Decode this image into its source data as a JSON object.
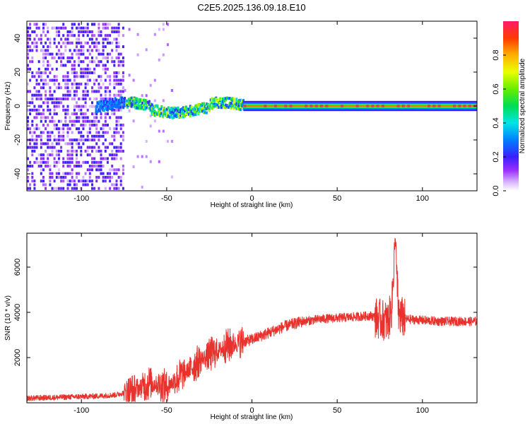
{
  "title": "C2E5.2025.136.09.18.E10",
  "chart_data": [
    {
      "type": "heatmap",
      "xlabel": "Height of straight line (km)",
      "ylabel": "Frequency (Hz)",
      "xlim": [
        -132,
        132
      ],
      "ylim": [
        -50,
        50
      ],
      "xticks": [
        -100,
        -50,
        0,
        50,
        100
      ],
      "yticks": [
        -40,
        -20,
        0,
        20,
        40
      ],
      "colorbar": {
        "label": "Normalized spectral amplitude",
        "range": [
          0,
          1
        ],
        "ticks": [
          0.0,
          0.2,
          0.4,
          0.6,
          0.8
        ],
        "tick_labels": [
          "0.0",
          "0.2",
          "0.4",
          "0.6",
          "0.8"
        ],
        "colormap": "purple-blue-cyan-green-yellow-red"
      },
      "regions": [
        {
          "x_range": [
            -132,
            -75
          ],
          "description_level": "broadband noise",
          "amplitude": 0.15
        },
        {
          "x_range": [
            -75,
            -5
          ],
          "center_freq_hz": 0,
          "width_hz": 6,
          "amplitude": 0.35
        },
        {
          "x_range": [
            -5,
            132
          ],
          "center_freq_hz": 0,
          "width_hz": 3,
          "amplitude": 0.95
        }
      ]
    },
    {
      "type": "line",
      "xlabel": "Height of straight line (km)",
      "ylabel": "SNR (10 * v/v)",
      "xlim": [
        -132,
        132
      ],
      "ylim": [
        0,
        7500
      ],
      "xticks": [
        -100,
        -50,
        0,
        50,
        100
      ],
      "yticks": [
        2000,
        4000,
        6000
      ],
      "line_color": "#e8322d",
      "series": [
        {
          "x": [
            -132,
            -110,
            -90,
            -80,
            -75,
            -70,
            -65,
            -60,
            -55,
            -50,
            -45,
            -40,
            -35,
            -30,
            -25,
            -20,
            -15,
            -10,
            -5,
            0,
            10,
            20,
            30,
            40,
            50,
            60,
            70,
            75,
            80,
            82,
            84,
            86,
            90,
            100,
            110,
            120,
            132
          ],
          "y": [
            200,
            250,
            300,
            350,
            450,
            500,
            700,
            900,
            800,
            700,
            1000,
            1300,
            1600,
            1900,
            2100,
            2300,
            2500,
            2600,
            2700,
            2800,
            3100,
            3400,
            3600,
            3700,
            3750,
            3800,
            3850,
            3700,
            3600,
            4200,
            7200,
            3900,
            3700,
            3650,
            3600,
            3600,
            3600
          ]
        }
      ]
    }
  ]
}
